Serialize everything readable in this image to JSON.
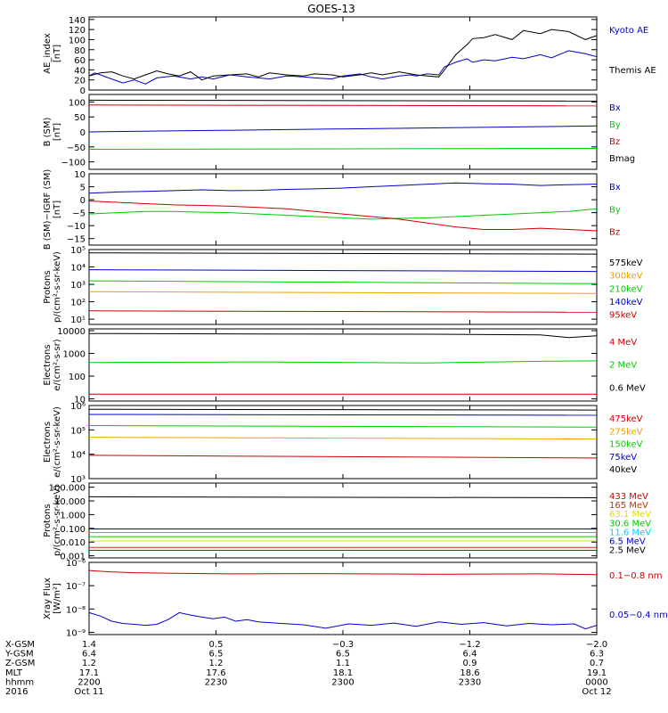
{
  "title": "GOES-13",
  "chart_data": [
    {
      "id": "ae",
      "type": "line",
      "ylabel": [
        "AE_index",
        "[nT]"
      ],
      "ylim": [
        0,
        145
      ],
      "yticks": [
        {
          "v": 140,
          "t": "140"
        },
        {
          "v": 120,
          "t": "120"
        },
        {
          "v": 100,
          "t": "100"
        },
        {
          "v": 80,
          "t": "80"
        },
        {
          "v": 60,
          "t": "60"
        },
        {
          "v": 40,
          "t": "40"
        },
        {
          "v": 20,
          "t": "20"
        },
        {
          "v": 0,
          "t": "0"
        }
      ],
      "series": [
        {
          "name": "Kyoto AE",
          "color": "#0000cc",
          "x": [
            0,
            1,
            2,
            4,
            6,
            8,
            10,
            12,
            15,
            18,
            20,
            22,
            25,
            28,
            30,
            32,
            35,
            38,
            40,
            43,
            45,
            48,
            50,
            52,
            55,
            57,
            58,
            60,
            62,
            63,
            65,
            67,
            68,
            70,
            72,
            75,
            77,
            80,
            82,
            85,
            88,
            90
          ],
          "y": [
            28,
            34,
            30,
            22,
            14,
            20,
            12,
            24,
            28,
            22,
            26,
            22,
            30,
            26,
            24,
            22,
            28,
            26,
            24,
            22,
            28,
            32,
            26,
            22,
            28,
            30,
            28,
            32,
            30,
            46,
            55,
            62,
            55,
            60,
            58,
            65,
            62,
            70,
            64,
            78,
            72,
            66
          ]
        },
        {
          "name": "Themis AE",
          "color": "#000000",
          "x": [
            0,
            2,
            4,
            6,
            8,
            10,
            12,
            14,
            16,
            18,
            20,
            22,
            25,
            28,
            30,
            32,
            35,
            38,
            40,
            43,
            45,
            48,
            50,
            52,
            55,
            57,
            58,
            60,
            62,
            63,
            65,
            67,
            68,
            70,
            72,
            75,
            77,
            80,
            82,
            85,
            88,
            90
          ],
          "y": [
            28,
            34,
            36,
            28,
            22,
            30,
            38,
            32,
            28,
            36,
            20,
            28,
            30,
            32,
            26,
            34,
            30,
            28,
            32,
            30,
            26,
            30,
            34,
            30,
            36,
            32,
            30,
            28,
            26,
            40,
            70,
            90,
            102,
            104,
            110,
            100,
            118,
            112,
            120,
            116,
            100,
            108
          ]
        }
      ]
    },
    {
      "id": "bsm",
      "type": "line",
      "ylabel": [
        "B (SM)",
        "[nT]"
      ],
      "ylim": [
        -125,
        125
      ],
      "yticks": [
        {
          "v": 100,
          "t": "100"
        },
        {
          "v": 50,
          "t": "50"
        },
        {
          "v": 0,
          "t": "0"
        },
        {
          "v": -50,
          "t": "−50"
        },
        {
          "v": -100,
          "t": "−100"
        }
      ],
      "series": [
        {
          "name": "Bx",
          "color": "#0000cc",
          "x": [
            0,
            90
          ],
          "y": [
            0,
            20
          ]
        },
        {
          "name": "By",
          "color": "#00cc00",
          "x": [
            0,
            90
          ],
          "y": [
            -58,
            -55
          ]
        },
        {
          "name": "Bz",
          "color": "#cc0000",
          "x": [
            0,
            90
          ],
          "y": [
            90,
            87
          ]
        },
        {
          "name": "Bmag",
          "color": "#000000",
          "x": [
            0,
            90
          ],
          "y": [
            106,
            103
          ]
        }
      ]
    },
    {
      "id": "bigrf",
      "type": "line",
      "ylabel": [
        "B (SM)−IGRF (SM)",
        "[nT]"
      ],
      "ylim": [
        -17.5,
        10
      ],
      "yticks": [
        {
          "v": 10,
          "t": "10"
        },
        {
          "v": 5,
          "t": "5"
        },
        {
          "v": 0,
          "t": "0"
        },
        {
          "v": -5,
          "t": "−5"
        },
        {
          "v": -10,
          "t": "−10"
        },
        {
          "v": -15,
          "t": "−15"
        }
      ],
      "series": [
        {
          "name": "Bx",
          "color": "#0000cc",
          "x": [
            0,
            5,
            10,
            15,
            20,
            25,
            30,
            35,
            40,
            45,
            50,
            55,
            60,
            65,
            70,
            75,
            80,
            85,
            90
          ],
          "y": [
            2.5,
            3,
            3.2,
            3.5,
            3.8,
            3.5,
            3.6,
            4,
            4.2,
            4.5,
            5,
            5.5,
            6,
            6.5,
            6.2,
            6,
            5.5,
            5.8,
            6
          ]
        },
        {
          "name": "By",
          "color": "#00cc00",
          "x": [
            0,
            5,
            10,
            15,
            20,
            25,
            30,
            35,
            40,
            45,
            50,
            55,
            60,
            65,
            70,
            75,
            80,
            85,
            90
          ],
          "y": [
            -5.5,
            -5,
            -4.5,
            -4.5,
            -4.8,
            -5,
            -5.5,
            -6,
            -6.5,
            -7,
            -7.5,
            -7.2,
            -7,
            -6.5,
            -6,
            -5.5,
            -5,
            -4.5,
            -3.5
          ]
        },
        {
          "name": "Bz",
          "color": "#cc0000",
          "x": [
            0,
            5,
            10,
            15,
            20,
            25,
            30,
            35,
            40,
            45,
            50,
            55,
            60,
            65,
            70,
            75,
            80,
            85,
            90
          ],
          "y": [
            -0.5,
            -1,
            -1.5,
            -2,
            -2.2,
            -2.5,
            -3,
            -3.5,
            -4.5,
            -5.5,
            -6.5,
            -7.5,
            -9,
            -10.5,
            -11.5,
            -11.5,
            -11,
            -11.5,
            -12
          ]
        }
      ]
    },
    {
      "id": "protons_low",
      "type": "line",
      "log": true,
      "ylabel": [
        "Protons",
        "p/(cm²-s-sr-keV)"
      ],
      "ylim": [
        5,
        100000
      ],
      "yticks": [
        {
          "v": 10,
          "t": "10¹"
        },
        {
          "v": 100,
          "t": "10²"
        },
        {
          "v": 1000,
          "t": "10³"
        },
        {
          "v": 10000,
          "t": "10⁴"
        },
        {
          "v": 100000,
          "t": "10⁵"
        }
      ],
      "series": [
        {
          "name": "575keV",
          "color": "#000000",
          "x": [
            0,
            90
          ],
          "y": [
            65000,
            55000
          ]
        },
        {
          "name": "300keV",
          "color": "#f0a000",
          "x": [
            0,
            90
          ],
          "y": [
            380,
            300
          ]
        },
        {
          "name": "210keV",
          "color": "#00cc00",
          "x": [
            0,
            90
          ],
          "y": [
            1600,
            1100
          ]
        },
        {
          "name": "140keV",
          "color": "#0000cc",
          "x": [
            0,
            90
          ],
          "y": [
            7000,
            5500
          ]
        },
        {
          "name": "95keV",
          "color": "#cc0000",
          "x": [
            0,
            90
          ],
          "y": [
            30,
            25
          ]
        }
      ]
    },
    {
      "id": "electrons_mev",
      "type": "line",
      "log": true,
      "ylabel": [
        "Electrons",
        "e/(cm²-s-sr)"
      ],
      "ylim": [
        8,
        12000
      ],
      "yticks": [
        {
          "v": 10,
          "t": "10"
        },
        {
          "v": 100,
          "t": "100"
        },
        {
          "v": 1000,
          "t": "1000"
        },
        {
          "v": 10000,
          "t": "10000"
        }
      ],
      "series": [
        {
          "name": "4 MeV",
          "color": "#cc0000",
          "x": [
            0,
            90
          ],
          "y": [
            16,
            16
          ]
        },
        {
          "name": "2 MeV",
          "color": "#00cc00",
          "x": [
            0,
            30,
            60,
            80,
            90
          ],
          "y": [
            400,
            420,
            380,
            450,
            470
          ]
        },
        {
          "name": "0.6 MeV",
          "color": "#000000",
          "x": [
            0,
            30,
            60,
            80,
            85,
            90
          ],
          "y": [
            7500,
            7200,
            7000,
            6500,
            5000,
            6000
          ]
        }
      ]
    },
    {
      "id": "electrons_kev",
      "type": "line",
      "log": true,
      "ylabel": [
        "Electrons",
        "e/(cm²-s-sr-keV)"
      ],
      "ylim": [
        1000,
        1000000
      ],
      "yticks": [
        {
          "v": 1000,
          "t": "10³"
        },
        {
          "v": 10000,
          "t": "10⁴"
        },
        {
          "v": 100000,
          "t": "10⁵"
        },
        {
          "v": 1000000,
          "t": "10⁶"
        }
      ],
      "series": [
        {
          "name": "475keV",
          "color": "#cc0000",
          "x": [
            0,
            90
          ],
          "y": [
            9000,
            7000
          ]
        },
        {
          "name": "275keV",
          "color": "#f0a000",
          "x": [
            0,
            90
          ],
          "y": [
            50000,
            42000
          ]
        },
        {
          "name": "150keV",
          "color": "#00cc00",
          "x": [
            0,
            90
          ],
          "y": [
            150000,
            130000
          ]
        },
        {
          "name": "75keV",
          "color": "#0000cc",
          "x": [
            0,
            90
          ],
          "y": [
            430000,
            400000
          ]
        },
        {
          "name": "40keV",
          "color": "#000000",
          "x": [
            0,
            90
          ],
          "y": [
            700000,
            650000
          ]
        }
      ]
    },
    {
      "id": "protons_high",
      "type": "line",
      "log": true,
      "ylabel": [
        "Protons",
        "p/(cm²-s-sr-keV)"
      ],
      "ylim": [
        0.0007,
        200
      ],
      "yticks": [
        {
          "v": 0.001,
          "t": "0.001"
        },
        {
          "v": 0.01,
          "t": "0.010"
        },
        {
          "v": 0.1,
          "t": "0.100"
        },
        {
          "v": 1,
          "t": "1.000"
        },
        {
          "v": 10,
          "t": "10.000"
        },
        {
          "v": 100,
          "t": "100.000"
        }
      ],
      "series": [
        {
          "name": "433 MeV",
          "color": "#cc0000",
          "x": [
            0,
            90
          ],
          "y": [
            0.0025,
            0.0025
          ]
        },
        {
          "name": "165 MeV",
          "color": "#cc3300",
          "x": [
            0,
            90
          ],
          "y": [
            0.004,
            0.004
          ]
        },
        {
          "name": "63.1 MeV",
          "color": "#e0e000",
          "x": [
            0,
            90
          ],
          "y": [
            0.012,
            0.012
          ]
        },
        {
          "name": "30.6 MeV",
          "color": "#00cc00",
          "x": [
            0,
            90
          ],
          "y": [
            0.025,
            0.025
          ]
        },
        {
          "name": "11.6 MeV",
          "color": "#00ccff",
          "x": [
            0,
            90
          ],
          "y": [
            0.05,
            0.05
          ]
        },
        {
          "name": "6.5 MeV",
          "color": "#0000cc",
          "x": [
            0,
            90
          ],
          "y": [
            0.09,
            0.09
          ]
        },
        {
          "name": "2.5 MeV",
          "color": "#000000",
          "x": [
            0,
            90
          ],
          "y": [
            20,
            17
          ]
        }
      ]
    },
    {
      "id": "xray",
      "type": "line",
      "log": true,
      "ylabel": [
        "Xray Flux",
        "[W/m²]"
      ],
      "ylim": [
        8e-10,
        1e-06
      ],
      "yticks": [
        {
          "v": 1e-06,
          "t": "10⁻⁶"
        },
        {
          "v": 1e-07,
          "t": "10⁻⁷"
        },
        {
          "v": 1e-08,
          "t": "10⁻⁸"
        },
        {
          "v": 1e-09,
          "t": "10⁻⁹"
        }
      ],
      "series": [
        {
          "name": "0.1−0.8 nm",
          "color": "#cc0000",
          "x": [
            0,
            4,
            8,
            15,
            25,
            40,
            60,
            80,
            90
          ],
          "y": [
            4.5e-07,
            3.9e-07,
            3.6e-07,
            3.4e-07,
            3.2e-07,
            3.3e-07,
            3.1e-07,
            3.2e-07,
            3e-07
          ]
        },
        {
          "name": "0.05−0.4 nm",
          "color": "#0000cc",
          "x": [
            0,
            2,
            4,
            6,
            8,
            10,
            12,
            14,
            16,
            18,
            20,
            22,
            24,
            26,
            28,
            30,
            34,
            38,
            42,
            46,
            50,
            54,
            58,
            62,
            66,
            70,
            74,
            78,
            82,
            86,
            88,
            90
          ],
          "y": [
            7e-09,
            5e-09,
            3e-09,
            2.4e-09,
            2.2e-09,
            2e-09,
            2.2e-09,
            3.5e-09,
            7e-09,
            5.5e-09,
            4.5e-09,
            3.8e-09,
            4.5e-09,
            3e-09,
            3.5e-09,
            2.8e-09,
            2.4e-09,
            2.1e-09,
            1.5e-09,
            2.3e-09,
            2e-09,
            2.5e-09,
            1.8e-09,
            2.8e-09,
            2.2e-09,
            2.6e-09,
            1.9e-09,
            2.4e-09,
            2.1e-09,
            2.3e-09,
            1.4e-09,
            2e-09
          ]
        }
      ]
    }
  ],
  "xaxis": {
    "xlim": [
      0,
      90
    ],
    "tick_positions": [
      0,
      22.5,
      45,
      67.5,
      90
    ],
    "rows": [
      {
        "label": "X-GSM",
        "values": [
          "1.4",
          "0.5",
          "−0.3",
          "−1.2",
          "−2.0"
        ]
      },
      {
        "label": "Y-GSM",
        "values": [
          "6.4",
          "6.5",
          "6.5",
          "6.4",
          "6.3"
        ]
      },
      {
        "label": "Z-GSM",
        "values": [
          "1.2",
          "1.2",
          "1.1",
          "0.9",
          "0.7"
        ]
      },
      {
        "label": "MLT",
        "values": [
          "17.1",
          "17.6",
          "18.1",
          "18.6",
          "19.1"
        ]
      },
      {
        "label": "hhmm",
        "values": [
          "2200",
          "2230",
          "2300",
          "2330",
          "0000"
        ]
      },
      {
        "label": "2016",
        "values": [
          "Oct 11",
          "",
          "",
          "",
          "Oct 12"
        ]
      }
    ]
  }
}
